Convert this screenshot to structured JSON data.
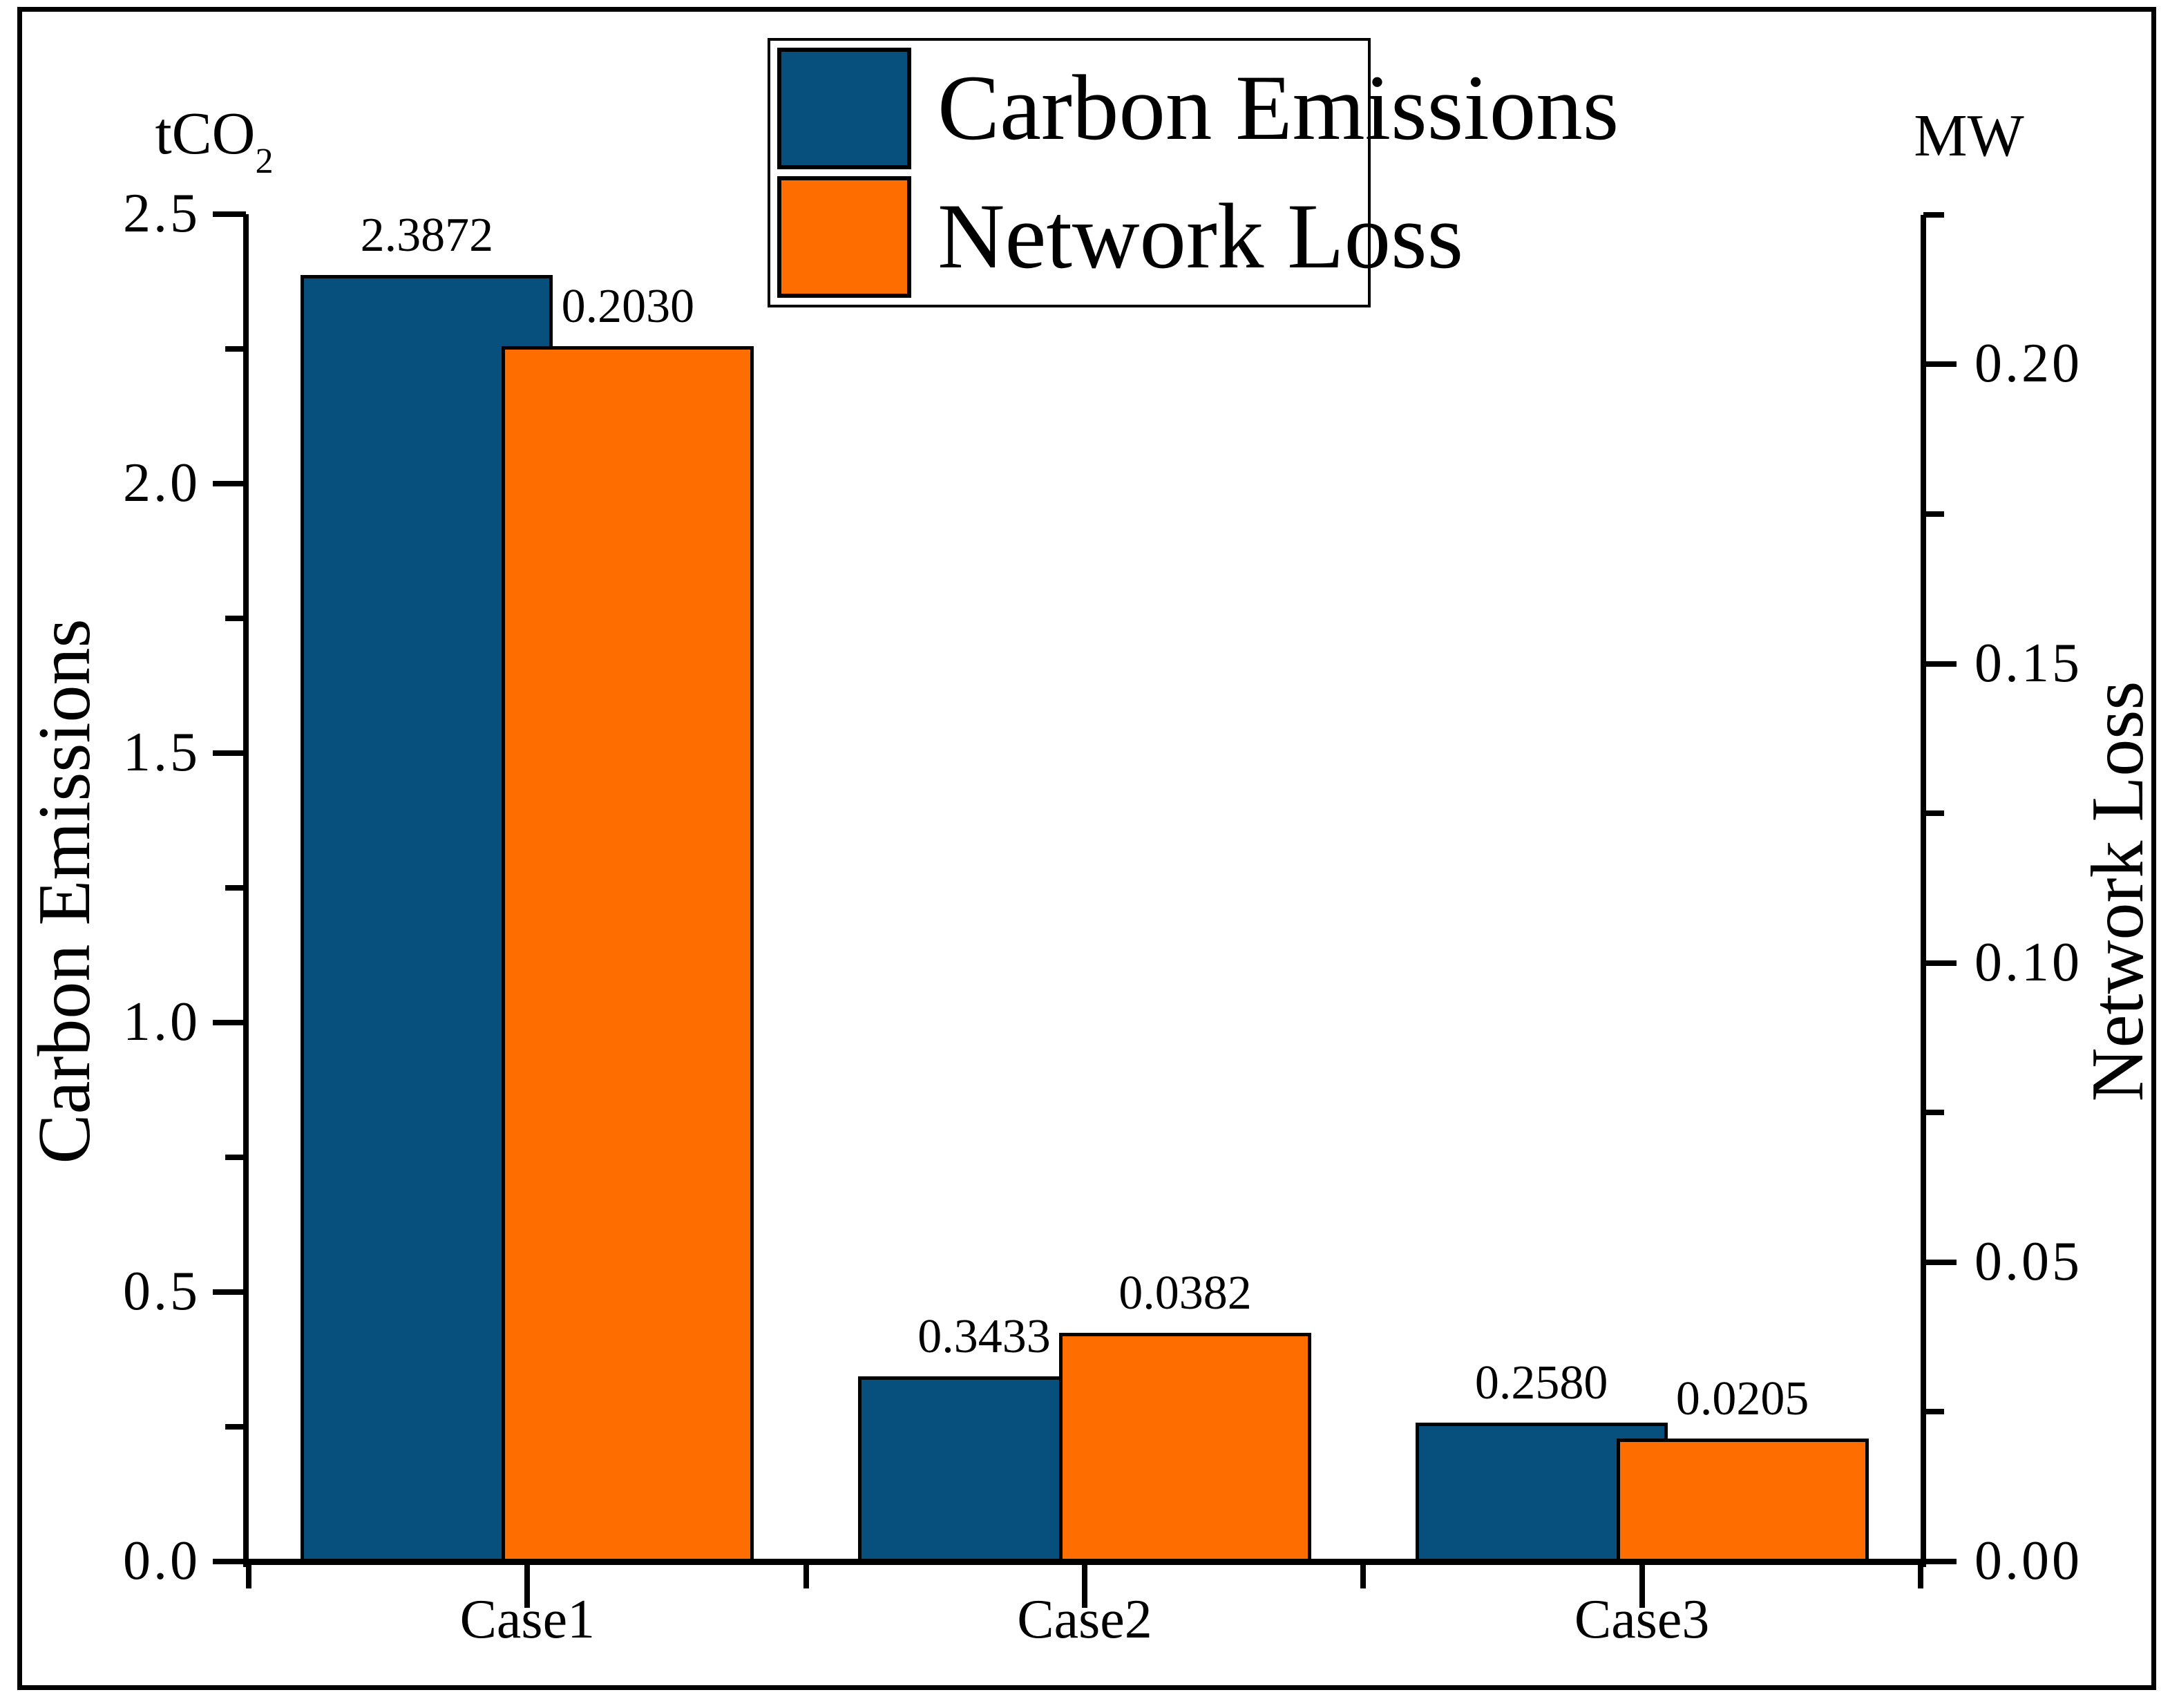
{
  "figure": {
    "background": "#ffffff",
    "border_color": "#000000"
  },
  "legend": {
    "items": [
      {
        "label": "Carbon Emissions",
        "color": "#07507E"
      },
      {
        "label": "Network Loss",
        "color": "#FE6D00"
      }
    ]
  },
  "left_axis": {
    "title": "Carbon Emissions",
    "unit": "tCO",
    "unit_sub": "2",
    "tick_labels": [
      "0.0",
      "0.5",
      "1.0",
      "1.5",
      "2.0",
      "2.5"
    ]
  },
  "right_axis": {
    "title": "Network Loss",
    "unit": "MW",
    "tick_labels": [
      "0.00",
      "0.05",
      "0.10",
      "0.15",
      "0.20"
    ]
  },
  "x_axis": {
    "categories": [
      "Case1",
      "Case2",
      "Case3"
    ]
  },
  "chart_data": {
    "type": "bar",
    "categories": [
      "Case1",
      "Case2",
      "Case3"
    ],
    "series": [
      {
        "name": "Carbon Emissions",
        "axis": "left",
        "color": "#07507E",
        "values": [
          2.3872,
          0.3433,
          0.258
        ],
        "value_labels": [
          "2.3872",
          "0.3433",
          "0.2580"
        ]
      },
      {
        "name": "Network Loss",
        "axis": "right",
        "color": "#FE6D00",
        "values": [
          0.203,
          0.0382,
          0.0205
        ],
        "value_labels": [
          "0.2030",
          "0.0382",
          "0.0205"
        ]
      }
    ],
    "left_ylabel": "Carbon Emissions",
    "left_unit": "tCO2",
    "right_ylabel": "Network Loss",
    "right_unit": "MW",
    "left_ylim": [
      0,
      2.5
    ],
    "right_ylim": [
      0,
      0.2251
    ],
    "left_major_ticks": [
      0,
      0.5,
      1.0,
      1.5,
      2.0,
      2.5
    ],
    "left_minor_ticks": [
      0.25,
      0.75,
      1.25,
      1.75,
      2.25
    ],
    "right_major_ticks": [
      0,
      0.05,
      0.1,
      0.15,
      0.2
    ],
    "right_minor_ticks": [
      0.025,
      0.075,
      0.125,
      0.175,
      0.225
    ],
    "grid": false,
    "legend_position": "top-center",
    "bar_overlap": "second series drawn overlapping first by ~20%"
  }
}
